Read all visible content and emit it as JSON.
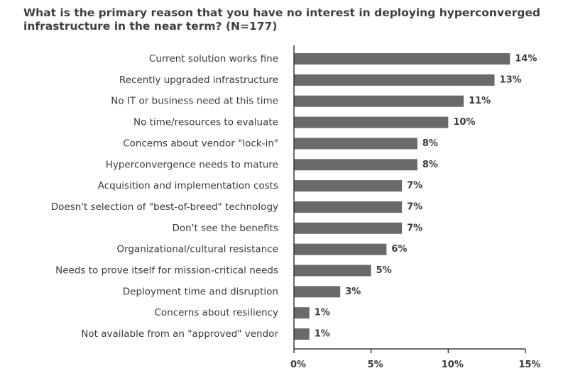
{
  "chart_data": {
    "type": "bar",
    "orientation": "horizontal",
    "title": "What is the primary reason that you have no interest in deploying hyperconverged infrastructure in the near term? (N=177)",
    "categories": [
      "Current solution works fine",
      "Recently upgraded infrastructure",
      "No IT or business need at this time",
      "No time/resources to evaluate",
      "Concerns about vendor \"lock-in\"",
      "Hyperconvergence needs to mature",
      "Acquisition and implementation costs",
      "Doesn't selection of \"best-of-breed\" technology",
      "Don't see the benefits",
      "Organizational/cultural resistance",
      "Needs to prove itself for mission-critical needs",
      "Deployment time and disruption",
      "Concerns about resiliency",
      "Not available from an \"approved\" vendor"
    ],
    "values": [
      14,
      13,
      11,
      10,
      8,
      8,
      7,
      7,
      7,
      6,
      5,
      3,
      1,
      1
    ],
    "value_labels": [
      "14%",
      "13%",
      "11%",
      "10%",
      "8%",
      "8%",
      "7%",
      "7%",
      "7%",
      "6%",
      "5%",
      "3%",
      "1%",
      "1%"
    ],
    "xlim": [
      0,
      15
    ],
    "xticks": [
      0,
      5,
      10,
      15
    ],
    "xtick_labels": [
      "0%",
      "5%",
      "10%",
      "15%"
    ],
    "bar_color": "#6b6a6a",
    "text_color": "#3a3a3a",
    "grid": false,
    "legend": "none"
  }
}
